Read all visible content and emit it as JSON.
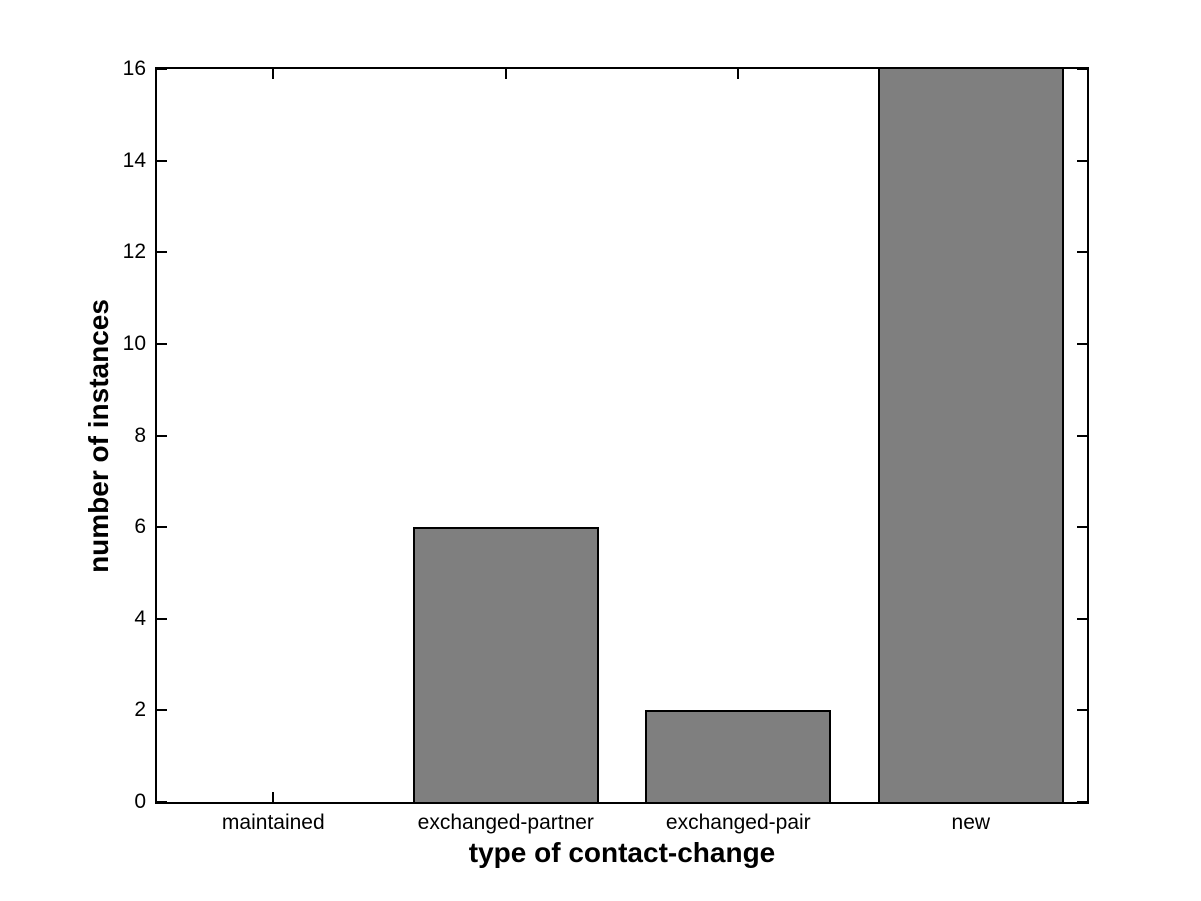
{
  "figure": {
    "background_color": "#ffffff",
    "axis_color": "#000000",
    "text_color": "#000000"
  },
  "chart_data": {
    "type": "bar",
    "title": "",
    "categories": [
      "maintained",
      "exchanged-partner",
      "exchanged-pair",
      "new"
    ],
    "values": [
      0,
      6,
      2,
      16
    ],
    "xlabel": "type of contact-change",
    "ylabel": "number of instances",
    "yticks": [
      0,
      2,
      4,
      6,
      8,
      10,
      12,
      14,
      16
    ],
    "ylim": [
      0,
      16
    ],
    "bar_color": "#7f7f7f",
    "bar_edge_color": "#000000",
    "bar_width_fraction": 0.8,
    "grid": false,
    "legend": null,
    "tick_direction": "in",
    "box": true
  }
}
